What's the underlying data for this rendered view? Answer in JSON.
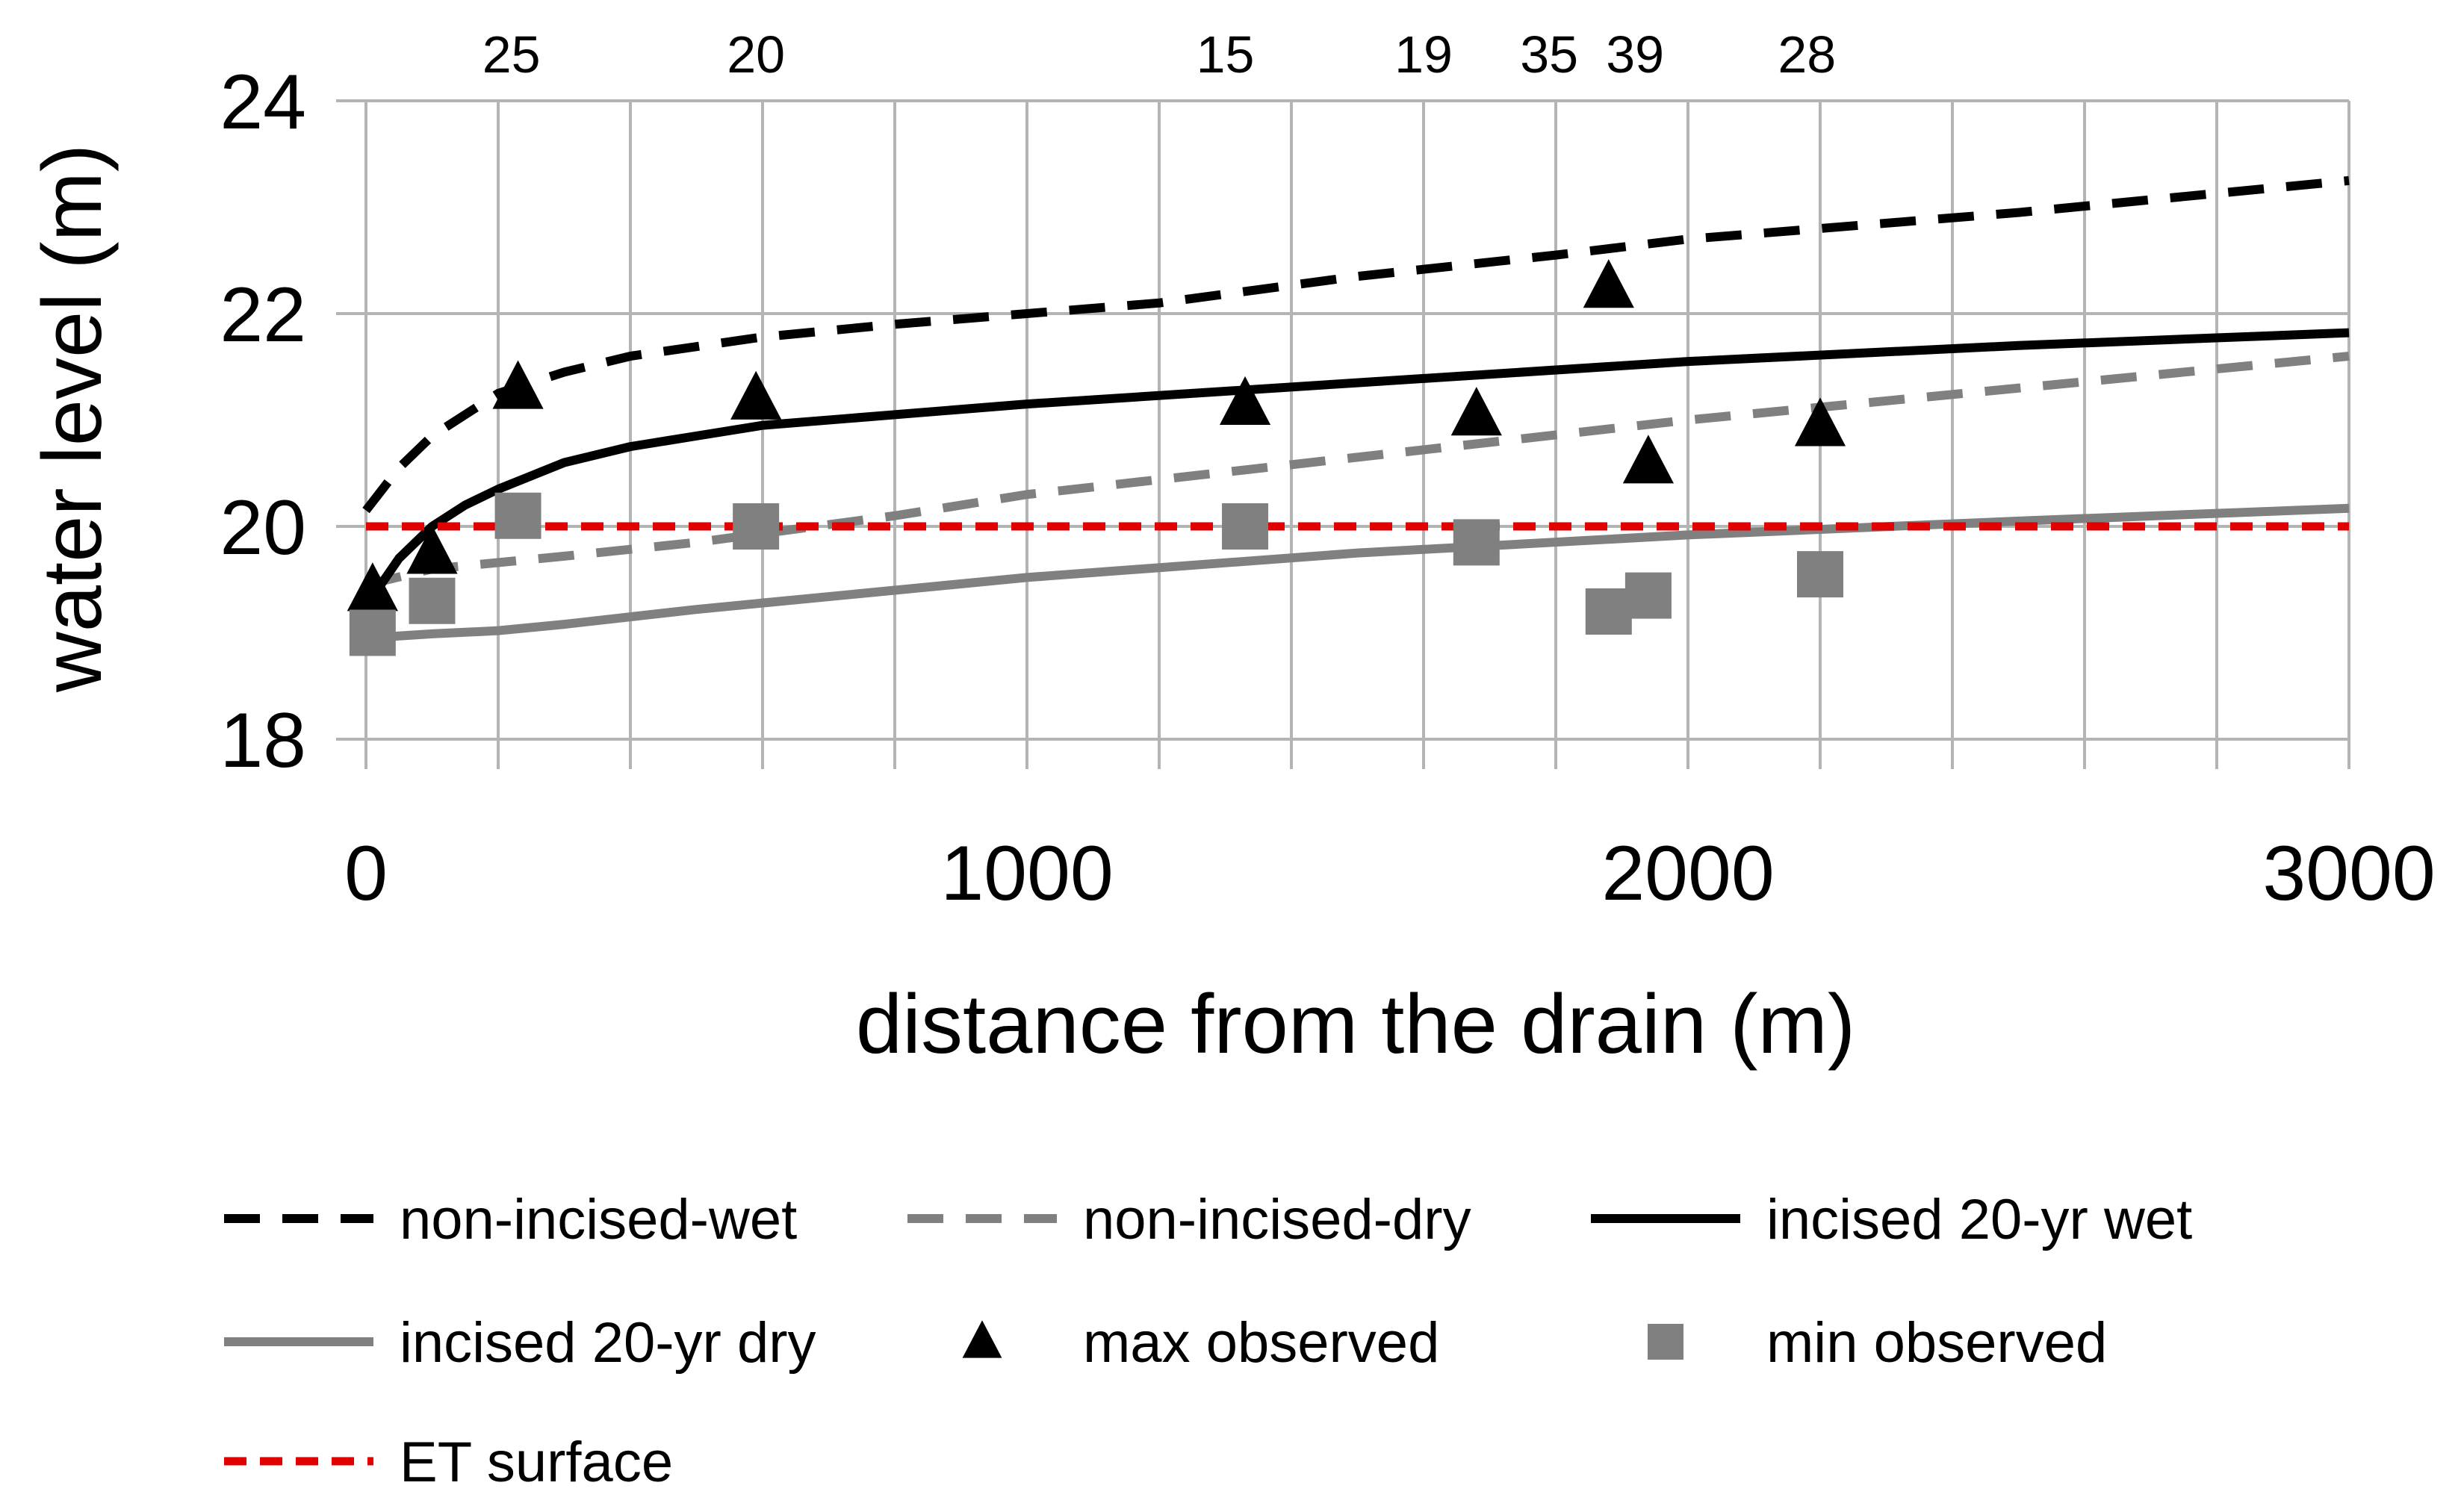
{
  "chart_data": {
    "type": "line",
    "title": "",
    "xlabel": "distance from the drain (m)",
    "ylabel": "water level (m)",
    "xlim": [
      0,
      3000
    ],
    "ylim": [
      18,
      24
    ],
    "x_ticks": [
      {
        "value": 0,
        "label": "0"
      },
      {
        "value": 1000,
        "label": "1000"
      },
      {
        "value": 2000,
        "label": "2000"
      },
      {
        "value": 3000,
        "label": "3000"
      }
    ],
    "y_ticks": [
      {
        "value": 18,
        "label": "18"
      },
      {
        "value": 20,
        "label": "20"
      },
      {
        "value": 22,
        "label": "22"
      },
      {
        "value": 24,
        "label": "24"
      }
    ],
    "x_minor_grid_step": 200,
    "grid": true,
    "top_annotations": [
      {
        "x": 220,
        "label": "25"
      },
      {
        "x": 590,
        "label": "20"
      },
      {
        "x": 1300,
        "label": "15"
      },
      {
        "x": 1600,
        "label": "19"
      },
      {
        "x": 1790,
        "label": "35"
      },
      {
        "x": 1920,
        "label": "39"
      },
      {
        "x": 2180,
        "label": "28"
      }
    ],
    "series": [
      {
        "name": "non-incised-wet",
        "kind": "line",
        "color": "#000000",
        "dash": "dashed",
        "x": [
          0,
          50,
          100,
          200,
          300,
          400,
          600,
          800,
          1000,
          1200,
          1500,
          1800,
          2000,
          2500,
          3000
        ],
        "y": [
          20.15,
          20.55,
          20.85,
          21.25,
          21.45,
          21.6,
          21.78,
          21.9,
          22.0,
          22.1,
          22.35,
          22.55,
          22.7,
          22.95,
          23.25
        ]
      },
      {
        "name": "non-incised-dry",
        "kind": "line",
        "color": "#808080",
        "dash": "dashed",
        "x": [
          0,
          100,
          300,
          500,
          800,
          1000,
          1500,
          2000,
          2500,
          3000
        ],
        "y": [
          19.45,
          19.6,
          19.72,
          19.85,
          20.1,
          20.3,
          20.65,
          21.0,
          21.3,
          21.6
        ]
      },
      {
        "name": "incised 20-yr wet",
        "kind": "line",
        "color": "#000000",
        "dash": "solid",
        "x": [
          0,
          50,
          100,
          150,
          200,
          300,
          400,
          500,
          600,
          800,
          1000,
          1500,
          2000,
          2500,
          3000
        ],
        "y": [
          19.25,
          19.7,
          20.0,
          20.2,
          20.35,
          20.6,
          20.75,
          20.85,
          20.95,
          21.05,
          21.15,
          21.35,
          21.55,
          21.7,
          21.82
        ]
      },
      {
        "name": "incised 20-yr dry",
        "kind": "line",
        "color": "#808080",
        "dash": "solid",
        "x": [
          0,
          50,
          100,
          200,
          300,
          500,
          800,
          1000,
          1500,
          2000,
          2500,
          3000
        ],
        "y": [
          18.95,
          18.97,
          18.99,
          19.02,
          19.08,
          19.22,
          19.4,
          19.52,
          19.75,
          19.92,
          20.05,
          20.17
        ]
      },
      {
        "name": "max observed",
        "kind": "scatter",
        "marker": "triangle",
        "color": "#000000",
        "x": [
          10,
          100,
          230,
          590,
          1330,
          1680,
          1880,
          1940,
          2200
        ],
        "y": [
          19.4,
          19.75,
          21.3,
          21.2,
          21.15,
          21.05,
          22.25,
          20.6,
          20.95
        ]
      },
      {
        "name": "min observed",
        "kind": "scatter",
        "marker": "square",
        "color": "#808080",
        "x": [
          10,
          100,
          230,
          590,
          1330,
          1680,
          1880,
          1940,
          2200
        ],
        "y": [
          19.0,
          19.3,
          20.1,
          20.0,
          20.0,
          19.85,
          19.2,
          19.35,
          19.55
        ]
      },
      {
        "name": "ET surface",
        "kind": "line",
        "color": "#e00000",
        "dash": "dashed",
        "x": [
          0,
          3000
        ],
        "y": [
          20.0,
          20.0
        ]
      }
    ],
    "legend_position": "bottom",
    "legend_order": [
      "non-incised-wet",
      "non-incised-dry",
      "incised 20-yr wet",
      "incised 20-yr dry",
      "max observed",
      "min observed",
      "ET surface"
    ]
  }
}
